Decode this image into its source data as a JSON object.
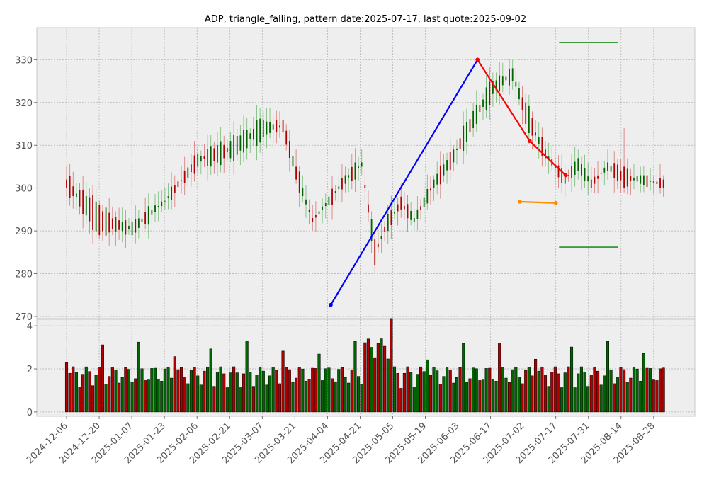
{
  "chart_data": {
    "type": "candlestick",
    "title": "ADP, triangle_falling, pattern date:2025-07-17, last quote:2025-09-02",
    "price_axis": {
      "ylim": [
        269.5,
        337.5
      ],
      "ticks": [
        270,
        280,
        290,
        300,
        310,
        320,
        330
      ]
    },
    "volume_axis": {
      "ylim": [
        -0.2,
        4.3
      ],
      "ticks": [
        0,
        2,
        4
      ]
    },
    "x_ticks": [
      "2024-12-06",
      "2024-12-20",
      "2025-01-07",
      "2025-01-23",
      "2025-02-06",
      "2025-02-21",
      "2025-03-07",
      "2025-03-21",
      "2025-04-04",
      "2025-04-21",
      "2025-05-05",
      "2025-05-19",
      "2025-06-03",
      "2025-06-17",
      "2025-07-02",
      "2025-07-17",
      "2025-07-31",
      "2025-08-14",
      "2025-08-28"
    ],
    "grid": true,
    "colors": {
      "up": "#006400",
      "down": "#b00000",
      "background": "#eeeeee",
      "grid": "#b0b0b0"
    },
    "bar_count": 183,
    "ohlc_sample": [
      {
        "i": 0,
        "open": 302,
        "high": 305,
        "low": 298,
        "close": 300
      },
      {
        "i": 10,
        "open": 296,
        "high": 297,
        "low": 288,
        "close": 289
      },
      {
        "i": 20,
        "open": 289,
        "high": 294,
        "low": 287,
        "close": 292
      },
      {
        "i": 30,
        "open": 297,
        "high": 300,
        "low": 295,
        "close": 297
      },
      {
        "i": 40,
        "open": 305,
        "high": 310,
        "low": 303,
        "close": 308
      },
      {
        "i": 50,
        "open": 307,
        "high": 313,
        "low": 306,
        "close": 311
      },
      {
        "i": 60,
        "open": 312,
        "high": 318,
        "low": 310,
        "close": 316
      },
      {
        "i": 66,
        "open": 316,
        "high": 323,
        "low": 312,
        "close": 313
      },
      {
        "i": 70,
        "open": 305,
        "high": 309,
        "low": 301,
        "close": 302
      },
      {
        "i": 75,
        "open": 293,
        "high": 296,
        "low": 290,
        "close": 292
      },
      {
        "i": 80,
        "open": 296,
        "high": 300,
        "low": 294,
        "close": 298
      },
      {
        "i": 85,
        "open": 301,
        "high": 305,
        "low": 299,
        "close": 303
      },
      {
        "i": 90,
        "open": 305,
        "high": 309,
        "low": 303,
        "close": 306
      },
      {
        "i": 94,
        "open": 288,
        "high": 290,
        "low": 280,
        "close": 282
      },
      {
        "i": 98,
        "open": 290,
        "high": 296,
        "low": 287,
        "close": 294
      },
      {
        "i": 102,
        "open": 298,
        "high": 301,
        "low": 293,
        "close": 295
      },
      {
        "i": 106,
        "open": 292,
        "high": 295,
        "low": 290,
        "close": 293
      },
      {
        "i": 112,
        "open": 300,
        "high": 303,
        "low": 297,
        "close": 302
      },
      {
        "i": 118,
        "open": 306,
        "high": 310,
        "low": 304,
        "close": 309
      },
      {
        "i": 124,
        "open": 314,
        "high": 320,
        "low": 312,
        "close": 318
      },
      {
        "i": 130,
        "open": 322,
        "high": 327,
        "low": 319,
        "close": 325
      },
      {
        "i": 136,
        "open": 325,
        "high": 330,
        "low": 323,
        "close": 328
      },
      {
        "i": 140,
        "open": 320,
        "high": 322,
        "low": 314,
        "close": 315
      },
      {
        "i": 146,
        "open": 309,
        "high": 311,
        "low": 305,
        "close": 307
      },
      {
        "i": 152,
        "open": 301,
        "high": 305,
        "low": 298,
        "close": 303
      },
      {
        "i": 156,
        "open": 304,
        "high": 309,
        "low": 302,
        "close": 307
      },
      {
        "i": 160,
        "open": 302,
        "high": 305,
        "low": 299,
        "close": 300
      },
      {
        "i": 165,
        "open": 304,
        "high": 309,
        "low": 302,
        "close": 306
      },
      {
        "i": 170,
        "open": 305,
        "high": 314,
        "low": 299,
        "close": 300
      },
      {
        "i": 175,
        "open": 301,
        "high": 305,
        "low": 299,
        "close": 303
      },
      {
        "i": 182,
        "open": 302,
        "high": 303,
        "low": 298,
        "close": 300
      }
    ],
    "overlays": {
      "blue_line": [
        {
          "date": "2025-04-07",
          "price": 272.7
        },
        {
          "date": "2025-06-11",
          "price": 330.0
        }
      ],
      "red_line": [
        {
          "date": "2025-06-11",
          "price": 330.0
        },
        {
          "date": "2025-07-07",
          "price": 311.0
        },
        {
          "date": "2025-07-22",
          "price": 303.0
        }
      ],
      "orange_line": [
        {
          "date": "2025-07-01",
          "price": 296.8
        },
        {
          "date": "2025-07-17",
          "price": 296.5
        }
      ],
      "green_levels": [
        {
          "price": 334.0,
          "from": "2025-07-18",
          "to": "2025-08-13"
        },
        {
          "price": 286.2,
          "from": "2025-07-18",
          "to": "2025-08-13"
        }
      ]
    }
  }
}
